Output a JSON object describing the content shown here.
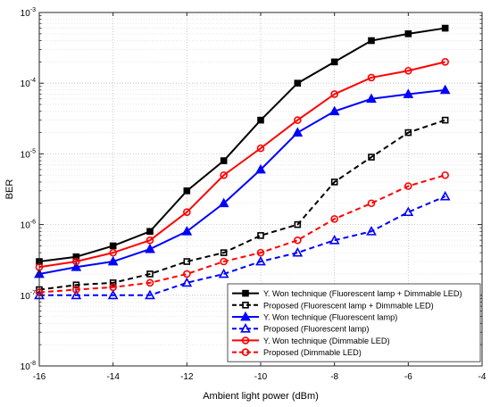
{
  "chart_data": {
    "type": "line",
    "title": "",
    "xlabel": "Ambient light power (dBm)",
    "ylabel": "BER",
    "xlim": [
      -16,
      -4
    ],
    "ylim": [
      1e-08,
      0.001
    ],
    "yscale": "log",
    "grid": true,
    "x_ticks": [
      "-16",
      "-14",
      "-12",
      "-10",
      "-8",
      "-6",
      "-4"
    ],
    "y_ticks": [
      {
        "base": "10",
        "exp": "-8"
      },
      {
        "base": "10",
        "exp": "-7"
      },
      {
        "base": "10",
        "exp": "-6"
      },
      {
        "base": "10",
        "exp": "-5"
      },
      {
        "base": "10",
        "exp": "-4"
      },
      {
        "base": "10",
        "exp": "-3"
      }
    ],
    "x": [
      -16,
      -15,
      -14,
      -13,
      -12,
      -11,
      -10,
      -9,
      -8,
      -7,
      -6,
      -5
    ],
    "legend_position": "bottom-right",
    "series": [
      {
        "name": "Y. Won technique (Fluorescent lamp + Dimmable LED)",
        "color": "#000000",
        "dash": "solid",
        "marker": "square",
        "values": [
          3e-07,
          3.5e-07,
          5e-07,
          8e-07,
          3e-06,
          8e-06,
          3e-05,
          0.0001,
          0.0002,
          0.0004,
          0.0005,
          0.0006
        ]
      },
      {
        "name": "Proposed (Fluorescent lamp + Dimmable LED)",
        "color": "#000000",
        "dash": "dashed",
        "marker": "square",
        "values": [
          1.2e-07,
          1.4e-07,
          1.5e-07,
          2e-07,
          3e-07,
          4e-07,
          7e-07,
          1e-06,
          4e-06,
          9e-06,
          2e-05,
          3e-05
        ]
      },
      {
        "name": "Y. Won technique (Fluorescent lamp)",
        "color": "#0000ff",
        "dash": "solid",
        "marker": "triangle",
        "values": [
          2e-07,
          2.5e-07,
          3e-07,
          4.5e-07,
          8e-07,
          2e-06,
          6e-06,
          2e-05,
          4e-05,
          6e-05,
          7e-05,
          8e-05
        ]
      },
      {
        "name": "Proposed (Fluorescent lamp)",
        "color": "#0000ff",
        "dash": "dashed",
        "marker": "triangle",
        "values": [
          1e-07,
          1e-07,
          1e-07,
          1e-07,
          1.5e-07,
          2e-07,
          3e-07,
          4e-07,
          6e-07,
          8e-07,
          1.5e-06,
          2.5e-06
        ]
      },
      {
        "name": "Y. Won technique (Dimmable LED)",
        "color": "#ff0000",
        "dash": "solid",
        "marker": "circle",
        "values": [
          2.5e-07,
          3e-07,
          4e-07,
          6e-07,
          1.5e-06,
          5e-06,
          1.2e-05,
          3e-05,
          7e-05,
          0.00012,
          0.00015,
          0.0002
        ]
      },
      {
        "name": "Proposed (Dimmable LED)",
        "color": "#ff0000",
        "dash": "dashed",
        "marker": "circle",
        "values": [
          1.1e-07,
          1.2e-07,
          1.3e-07,
          1.5e-07,
          2e-07,
          3e-07,
          4e-07,
          6e-07,
          1.2e-06,
          2e-06,
          3.5e-06,
          5e-06
        ]
      }
    ]
  }
}
